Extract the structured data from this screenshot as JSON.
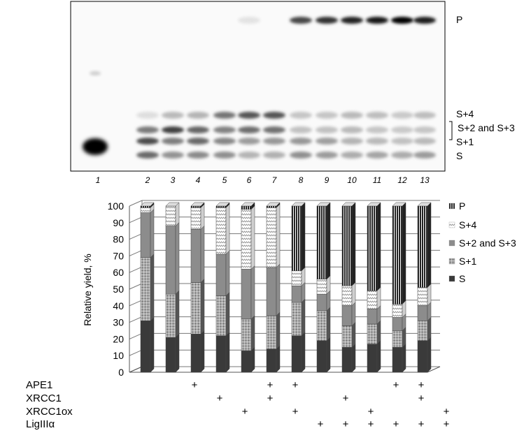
{
  "gel": {
    "product_label": "P",
    "band_labels": [
      "S+4",
      "S+2 and S+3",
      "S+1",
      "S"
    ],
    "lanes": [
      "1",
      "2",
      "3",
      "4",
      "5",
      "6",
      "7",
      "8",
      "9",
      "10",
      "11",
      "12",
      "13"
    ]
  },
  "chart_data": {
    "type": "bar",
    "stacked": true,
    "ylabel": "Relative yield, %",
    "ylim": [
      0,
      100
    ],
    "yticks": [
      0,
      10,
      20,
      30,
      40,
      50,
      60,
      70,
      80,
      90,
      100
    ],
    "categories": [
      "2",
      "3",
      "4",
      "5",
      "6",
      "7",
      "8",
      "9",
      "10",
      "11",
      "12",
      "13"
    ],
    "series": [
      {
        "name": "S",
        "color": "#3a3a3a",
        "pattern": "solid",
        "values": [
          31,
          21,
          23,
          22,
          13,
          14,
          22,
          19,
          15,
          17,
          15,
          19
        ]
      },
      {
        "name": "S+1",
        "color": "#555555",
        "pattern": "grid",
        "values": [
          38,
          26,
          31,
          24,
          19,
          20,
          20,
          18,
          13,
          12,
          10,
          12
        ]
      },
      {
        "name": "S+2 and S+3",
        "color": "#8c8c8c",
        "pattern": "solid",
        "values": [
          27,
          41,
          32,
          25,
          30,
          29,
          10,
          10,
          12,
          9,
          8,
          9
        ]
      },
      {
        "name": "S+4",
        "color": "#cfcfcf",
        "pattern": "zigzag",
        "values": [
          3,
          12,
          13,
          28,
          36,
          36,
          9,
          9,
          12,
          11,
          8,
          11
        ]
      },
      {
        "name": "P",
        "color": "#222222",
        "pattern": "vlines",
        "values": [
          1,
          0,
          1,
          1,
          2,
          1,
          39,
          44,
          48,
          51,
          59,
          49
        ]
      }
    ],
    "conditions": [
      {
        "name": "APE1",
        "marks": [
          "",
          "+",
          "",
          "",
          "+",
          "+",
          "",
          "",
          "",
          "+",
          "+",
          ""
        ]
      },
      {
        "name": "XRCC1",
        "marks": [
          "",
          "",
          "+",
          "",
          "+",
          "",
          "",
          "+",
          "",
          "",
          "+",
          ""
        ]
      },
      {
        "name": "XRCC1ox",
        "marks": [
          "",
          "",
          "",
          "+",
          "",
          "+",
          "",
          "",
          "+",
          "",
          "",
          "+"
        ]
      },
      {
        "name": "LigIIIα",
        "marks": [
          "",
          "",
          "",
          "",
          "",
          "",
          "+",
          "+",
          "+",
          "+",
          "+",
          "+"
        ]
      }
    ]
  }
}
